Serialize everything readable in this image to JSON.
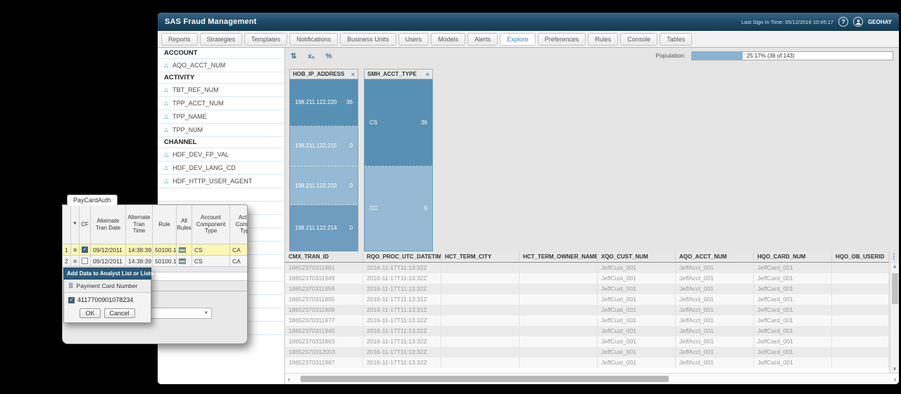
{
  "app": {
    "title": "SAS Fraud Management",
    "last_sign_in": "Last Sign In Time: 05/12/2016 10:45:17",
    "user": "GEOHAY"
  },
  "icons": {
    "help": "?",
    "close": "×",
    "menu_dots": "⋮",
    "scroll_up": "∧",
    "scroll_down": "∨",
    "scroll_left": "‹",
    "scroll_right": "›",
    "hamburger": "≡",
    "funnel": "▼",
    "triangle": "△",
    "checkmark": "✓",
    "numbered_list": "≣",
    "dropdown_arrow": "▼"
  },
  "tabs": {
    "active": "Explore",
    "items": [
      "Reports",
      "Strategies",
      "Templates",
      "Notifications",
      "Business Units",
      "Users",
      "Models",
      "Alerts",
      "Explore",
      "Preferences",
      "Rules",
      "Console",
      "Tables"
    ]
  },
  "sidebar": {
    "rows": [
      {
        "type": "header",
        "label": "ACCOUNT"
      },
      {
        "type": "item",
        "label": "AQO_ACCT_NUM"
      },
      {
        "type": "header",
        "label": "ACTIVITY"
      },
      {
        "type": "item",
        "label": "TBT_REF_NUM"
      },
      {
        "type": "item",
        "label": "TPP_ACCT_NUM"
      },
      {
        "type": "item",
        "label": "TPP_NAME"
      },
      {
        "type": "item",
        "label": "TPP_NUM"
      },
      {
        "type": "header",
        "label": "CHANNEL"
      },
      {
        "type": "item",
        "label": "HDF_DEV_FP_VAL"
      },
      {
        "type": "item",
        "label": "HDF_DEV_LANG_CD"
      },
      {
        "type": "item",
        "label": "HDF_HTTP_USER_AGENT"
      }
    ],
    "empty_row_count": 11
  },
  "explore": {
    "toolbar_icons": [
      {
        "name": "sort-icon",
        "glyph": "⇅"
      },
      {
        "name": "suppress-values-icon",
        "glyph": "xₓ"
      },
      {
        "name": "percent-icon",
        "glyph": "%"
      }
    ],
    "population": {
      "label": "Population:",
      "text": "25.17% (36 of 143)",
      "percent": 25.17
    }
  },
  "chart_data": [
    {
      "type": "bar",
      "title": "HOB_IP_ADDRESS",
      "categories": [
        "198.211.122.220",
        "198.211.122.215",
        "198.211.122.233",
        "198.211.122.214"
      ],
      "values": [
        36,
        0,
        0,
        0
      ],
      "tones": [
        "dark",
        "light",
        "light",
        "medium"
      ],
      "segment_heights": [
        67,
        56,
        54,
        66
      ]
    },
    {
      "type": "bar",
      "title": "SMH_ACCT_TYPE",
      "categories": [
        "CS",
        "CC"
      ],
      "values": [
        36,
        0
      ],
      "tones": [
        "dark",
        "light"
      ],
      "segment_heights": [
        123,
        120
      ]
    }
  ],
  "colors": {
    "bar_dark": "#5890b4",
    "bar_light": "#96bad3",
    "bar_medium": "#6f9dbf",
    "accent_blue": "#3d84b8",
    "popup_title_bg": "#2b5a7a",
    "population_fill": "#88b4d1",
    "highlight_row": "#fbf7b5"
  },
  "grid": {
    "columns": [
      "CMX_TRAN_ID",
      "RQO_PROC_UTC_DATETIME",
      "HCT_TERM_CITY",
      "HCT_TERM_OWNER_NAME",
      "XQO_CUST_NUM",
      "AQO_ACCT_NUM",
      "HQO_CARD_NUM",
      "HQO_OB_USERID"
    ],
    "rows": [
      [
        "18652370311981",
        "2016-11-17T11:13:32Z",
        "",
        "",
        "JeffCust_001",
        "JeffAcct_001",
        "JeffCard_001",
        ""
      ],
      [
        "18652370311949",
        "2016-11-17T11:13:32Z",
        "",
        "",
        "JeffCust_001",
        "JeffAcct_001",
        "JeffCard_001",
        ""
      ],
      [
        "18652370311959",
        "2016-11-17T11:13:32Z",
        "",
        "",
        "JeffCust_001",
        "JeffAcct_001",
        "JeffCard_001",
        ""
      ],
      [
        "18652370311895",
        "2016-11-17T11:13:31Z",
        "",
        "",
        "JeffCust_001",
        "JeffAcct_001",
        "JeffCard_001",
        ""
      ],
      [
        "18652370311906",
        "2016-11-17T11:13:31Z",
        "",
        "",
        "JeffCust_001",
        "JeffAcct_001",
        "JeffCard_001",
        ""
      ],
      [
        "18652370311977",
        "2016-11-17T11:13:32Z",
        "",
        "",
        "JeffCust_001",
        "JeffAcct_001",
        "JeffCard_001",
        ""
      ],
      [
        "18652370311945",
        "2016-11-17T11:13:32Z",
        "",
        "",
        "JeffCust_001",
        "JeffAcct_001",
        "JeffCard_001",
        ""
      ],
      [
        "18652370311963",
        "2016-11-17T11:13:32Z",
        "",
        "",
        "JeffCust_001",
        "JeffAcct_001",
        "JeffCard_001",
        ""
      ],
      [
        "18652370312003",
        "2016-11-17T11:13:32Z",
        "",
        "",
        "JeffCust_001",
        "JeffAcct_001",
        "JeffCard_001",
        ""
      ],
      [
        "18652370311987",
        "2016-11-17T11:13:32Z",
        "",
        "",
        "JeffCust_001",
        "JeffAcct_001",
        "JeffCard_001",
        ""
      ]
    ]
  },
  "paycard": {
    "tab": "PayCardAuth",
    "columns": [
      "",
      "",
      "CF",
      "Alternate Tran Date",
      "Alternate Tran Time",
      "Rule",
      "All Rules",
      "Account Component Type",
      "Activ Compo Typ"
    ],
    "rows": [
      {
        "num": "1",
        "cf_checked": true,
        "date": "09/12/2011",
        "time": "14:38:39",
        "rule": "50100.1",
        "account_component_type": "CS",
        "activity_component_type": "CA",
        "highlighted": true
      },
      {
        "num": "2",
        "cf_checked": false,
        "date": "09/12/2011",
        "time": "14:38:39",
        "rule": "50100.1",
        "account_component_type": "CS",
        "activity_component_type": "CA",
        "highlighted": false
      }
    ]
  },
  "popup": {
    "title": "Add Data to Analyst List or Lists",
    "field_label": "Payment Card Number",
    "item_value": "4117700901078234",
    "item_checked": true,
    "ok_label": "OK",
    "cancel_label": "Cancel"
  }
}
